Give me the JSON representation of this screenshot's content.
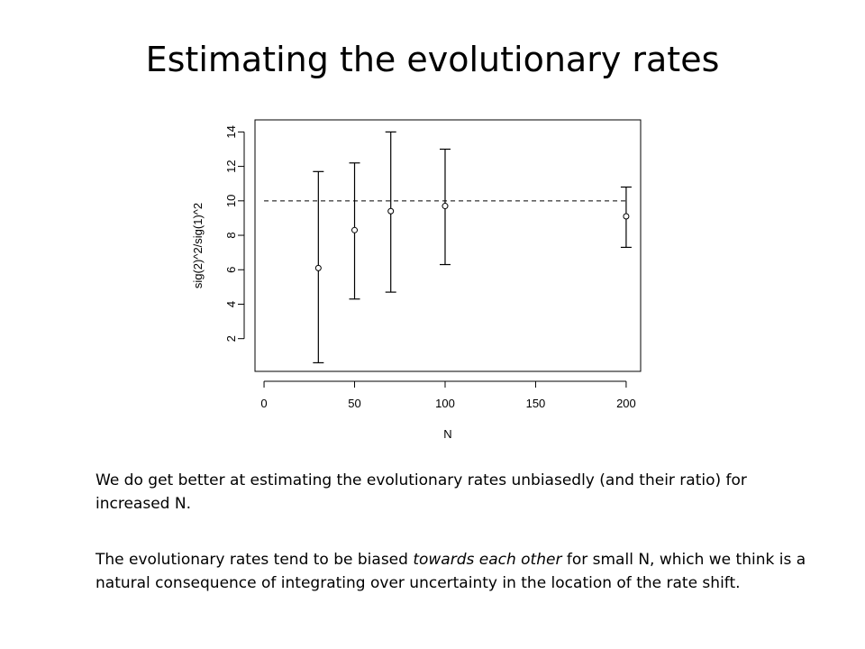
{
  "slide": {
    "title": "Estimating the evolutionary rates",
    "paragraph1": "We do get better at estimating the evolutionary rates unbiasedly (and their ratio) for increased N.",
    "paragraph2_part1": "The evolutionary rates tend to be biased ",
    "paragraph2_emphasis": "towards each other",
    "paragraph2_part2": " for small N, which we think is a natural consequence of integrating over uncertainty in the location of the rate shift."
  },
  "chart_data": {
    "type": "scatter",
    "xlabel": "N",
    "ylabel": "sig(2)^2/sig(1)^2",
    "xlim": [
      -5,
      208
    ],
    "ylim": [
      0.1,
      14.7
    ],
    "xticks": [
      0,
      50,
      100,
      150,
      200
    ],
    "yticks": [
      2,
      4,
      6,
      8,
      10,
      12,
      14
    ],
    "reference_line": {
      "y": 10,
      "x_from": 0,
      "x_to": 200,
      "style": "dashed"
    },
    "points": [
      {
        "x": 30,
        "y": 6.1,
        "low": 0.6,
        "high": 11.7
      },
      {
        "x": 50,
        "y": 8.3,
        "low": 4.3,
        "high": 12.2
      },
      {
        "x": 70,
        "y": 9.4,
        "low": 4.7,
        "high": 14.0
      },
      {
        "x": 100,
        "y": 9.7,
        "low": 6.3,
        "high": 13.0
      },
      {
        "x": 200,
        "y": 9.1,
        "low": 7.3,
        "high": 10.8
      }
    ],
    "grid": false,
    "colors": {
      "ink": "#000000",
      "background": "#ffffff"
    }
  }
}
